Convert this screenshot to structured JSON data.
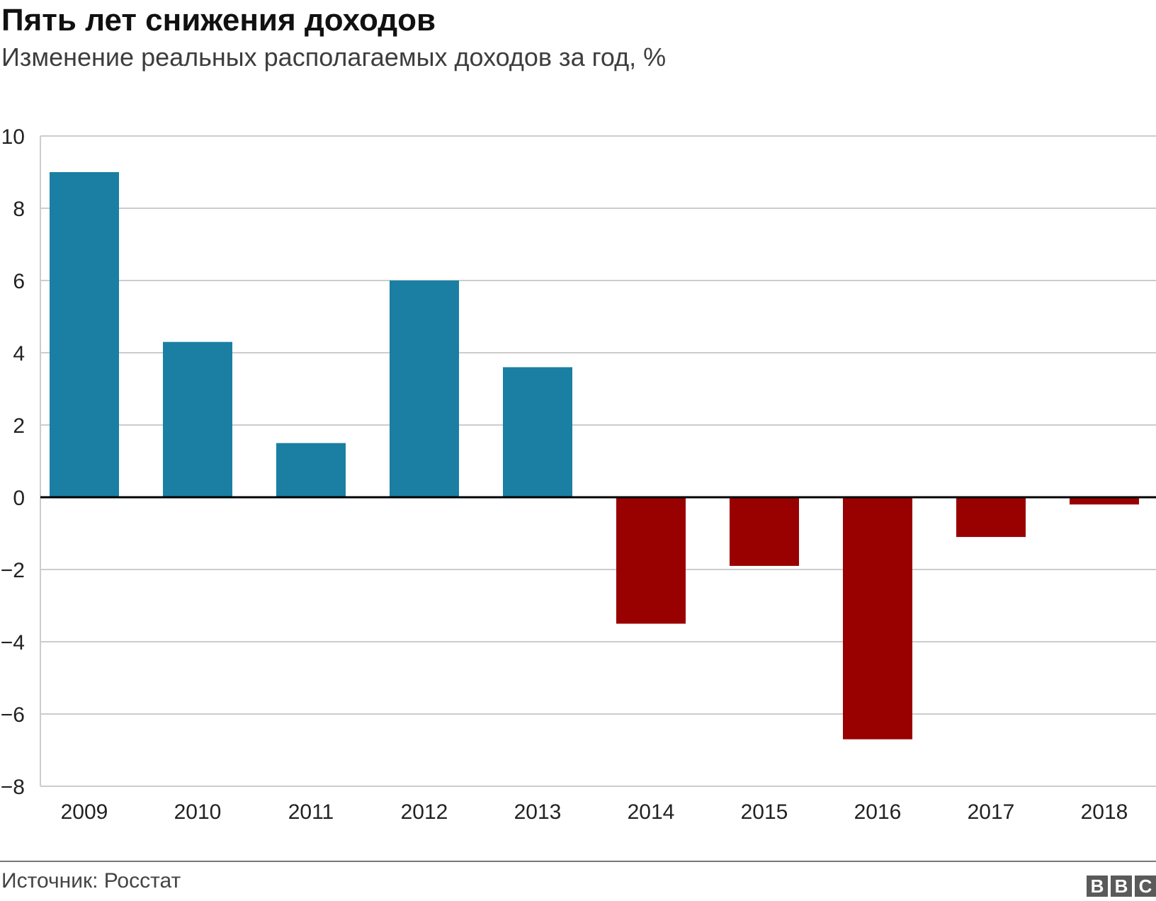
{
  "header": {
    "title": "Пять лет снижения доходов",
    "subtitle": "Изменение реальных располагаемых доходов за год, %"
  },
  "footer": {
    "source": "Источник: Росстат",
    "logo_letters": [
      "B",
      "B",
      "C"
    ]
  },
  "colors": {
    "positive": "#1a7fa3",
    "negative": "#990000",
    "grid": "#cccccc",
    "zero_line": "#000000"
  },
  "chart_data": {
    "type": "bar",
    "categories": [
      "2009",
      "2010",
      "2011",
      "2012",
      "2013",
      "2014",
      "2015",
      "2016",
      "2017",
      "2018"
    ],
    "values": [
      9.0,
      4.3,
      1.5,
      6.0,
      3.6,
      -3.5,
      -1.9,
      -6.7,
      -1.1,
      -0.2
    ],
    "ylim": [
      -8,
      10
    ],
    "yticks": [
      10,
      8,
      6,
      4,
      2,
      0,
      -2,
      -4,
      -6,
      -8
    ],
    "ytick_labels": [
      "10",
      "8",
      "6",
      "4",
      "2",
      "0",
      "−2",
      "−4",
      "−6",
      "−8"
    ],
    "grid": true,
    "legend": "none"
  }
}
